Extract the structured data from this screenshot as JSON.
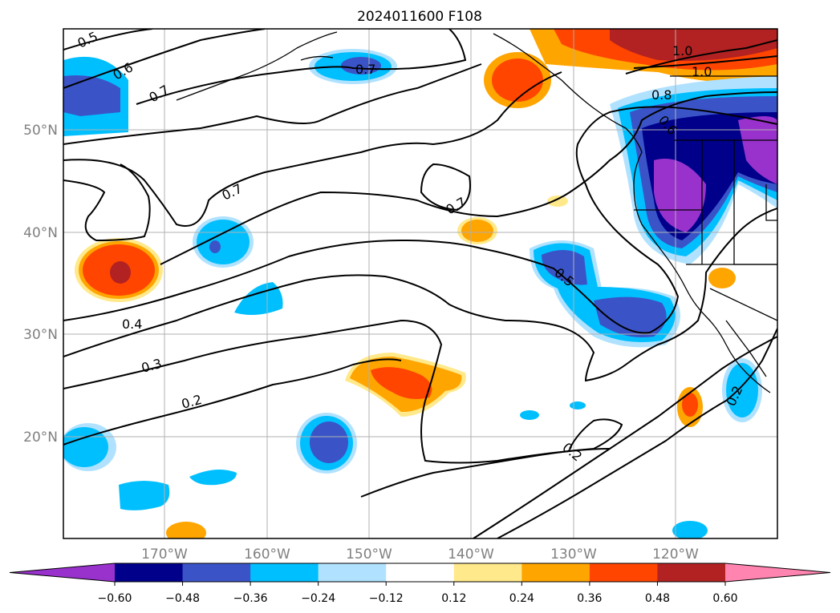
{
  "title": "2024011600 F108",
  "map": {
    "lon_labels": [
      "170°W",
      "160°W",
      "150°W",
      "140°W",
      "130°W",
      "120°W"
    ],
    "lat_labels": [
      "50°N",
      "40°N",
      "30°N",
      "20°N"
    ],
    "contour_labels": [
      "0.5",
      "0.6",
      "0.7",
      "0.7",
      "0.7",
      "0.7",
      "1.0",
      "1.0",
      "0.8",
      "0.6",
      "0.5",
      "0.4",
      "0.3",
      "0.2",
      "0.2",
      "0.2"
    ]
  },
  "colorbar": {
    "ticks": [
      "−0.60",
      "−0.48",
      "−0.36",
      "−0.24",
      "−0.12",
      "0.12",
      "0.24",
      "0.36",
      "0.48",
      "0.60"
    ],
    "colors": [
      "#9932cc",
      "#00008b",
      "#3a54c8",
      "#00bfff",
      "#b0e2ff",
      "#ffffff",
      "#ffe98a",
      "#ffa500",
      "#ff4500",
      "#b22222",
      "#ff85b0"
    ]
  }
}
